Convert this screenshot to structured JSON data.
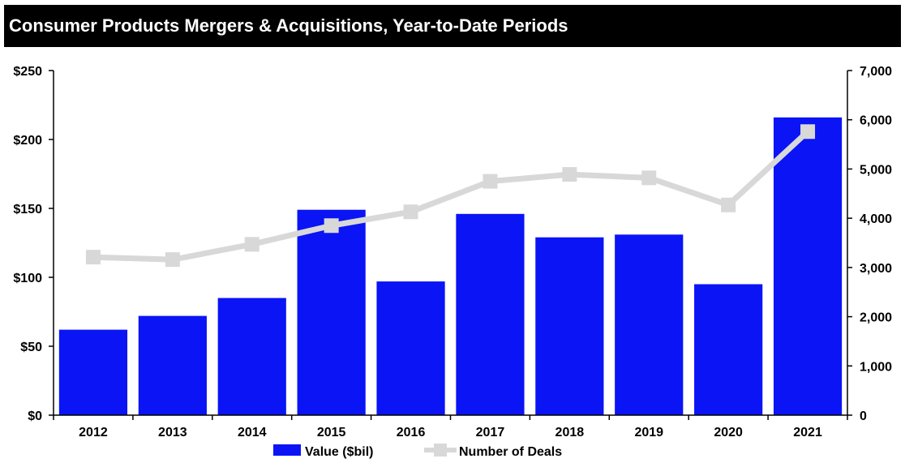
{
  "chart_data": {
    "type": "bar",
    "title": "Consumer Products Mergers & Acquisitions, Year-to-Date Periods",
    "categories": [
      "2012",
      "2013",
      "2014",
      "2015",
      "2016",
      "2017",
      "2018",
      "2019",
      "2020",
      "2021"
    ],
    "series": [
      {
        "name": "Value ($bil)",
        "type": "bar",
        "axis": "left",
        "color": "#0a14f5",
        "values": [
          62,
          72,
          85,
          149,
          97,
          146,
          129,
          131,
          95,
          216
        ]
      },
      {
        "name": "Number of Deals",
        "type": "line",
        "axis": "right",
        "color": "#d8d8d8",
        "values": [
          3210,
          3160,
          3470,
          3850,
          4130,
          4750,
          4890,
          4820,
          4270,
          5760
        ]
      }
    ],
    "y_left": {
      "min": 0,
      "max": 250,
      "ticks": [
        0,
        50,
        100,
        150,
        200,
        250
      ],
      "tick_labels": [
        "$0",
        "$50",
        "$100",
        "$150",
        "$200",
        "$250"
      ]
    },
    "y_right": {
      "min": 0,
      "max": 7000,
      "ticks": [
        0,
        1000,
        2000,
        3000,
        4000,
        5000,
        6000,
        7000
      ],
      "tick_labels": [
        "0",
        "1,000",
        "2,000",
        "3,000",
        "4,000",
        "5,000",
        "6,000",
        "7,000"
      ]
    },
    "grid": false,
    "legend_position": "bottom"
  }
}
